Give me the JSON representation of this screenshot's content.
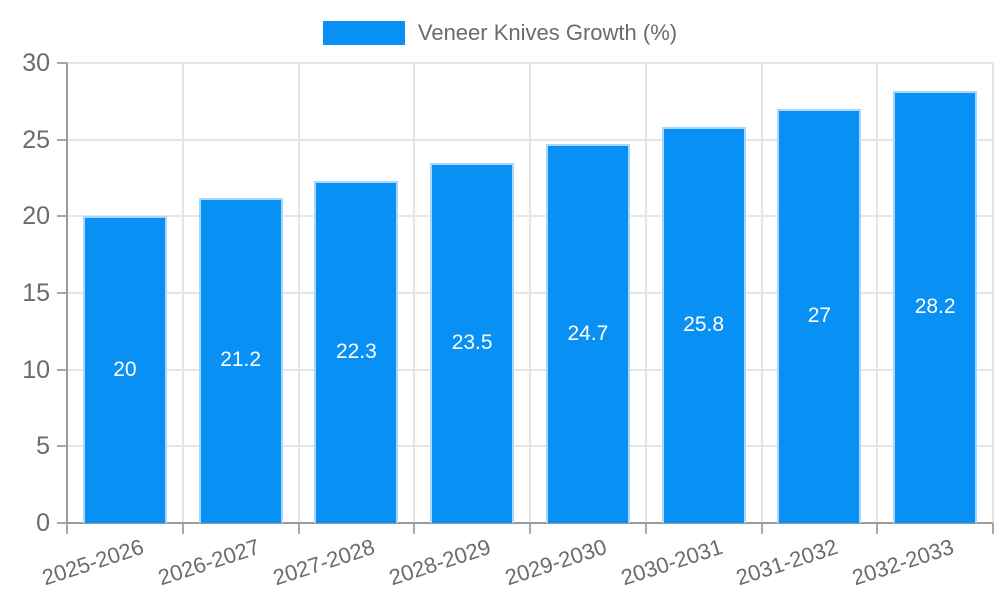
{
  "legend": {
    "label": "Veneer Knives Growth (%)"
  },
  "colors": {
    "bar": "#0890f4",
    "bar_edge": "#a7d7fb",
    "grid": "#e6e6e6",
    "spine": "#9b9b9b",
    "tick": "#a8a8a8",
    "tick_text": "#6b6b6b",
    "value_label": "#ffffff",
    "background": "#ffffff"
  },
  "chart_data": {
    "type": "bar",
    "title": "",
    "xlabel": "",
    "ylabel": "",
    "series_name": "Veneer Knives Growth (%)",
    "categories": [
      "2025-2026",
      "2026-2027",
      "2027-2028",
      "2028-2029",
      "2029-2030",
      "2030-2031",
      "2031-2032",
      "2032-2033"
    ],
    "values": [
      20,
      21.2,
      22.3,
      23.5,
      24.7,
      25.8,
      27,
      28.2
    ],
    "value_labels": [
      "20",
      "21.2",
      "22.3",
      "23.5",
      "24.7",
      "25.8",
      "27",
      "28.2"
    ],
    "ylim": [
      0,
      30
    ],
    "yticks": [
      0,
      5,
      10,
      15,
      20,
      25,
      30
    ],
    "grid": true,
    "legend_position": "top"
  }
}
